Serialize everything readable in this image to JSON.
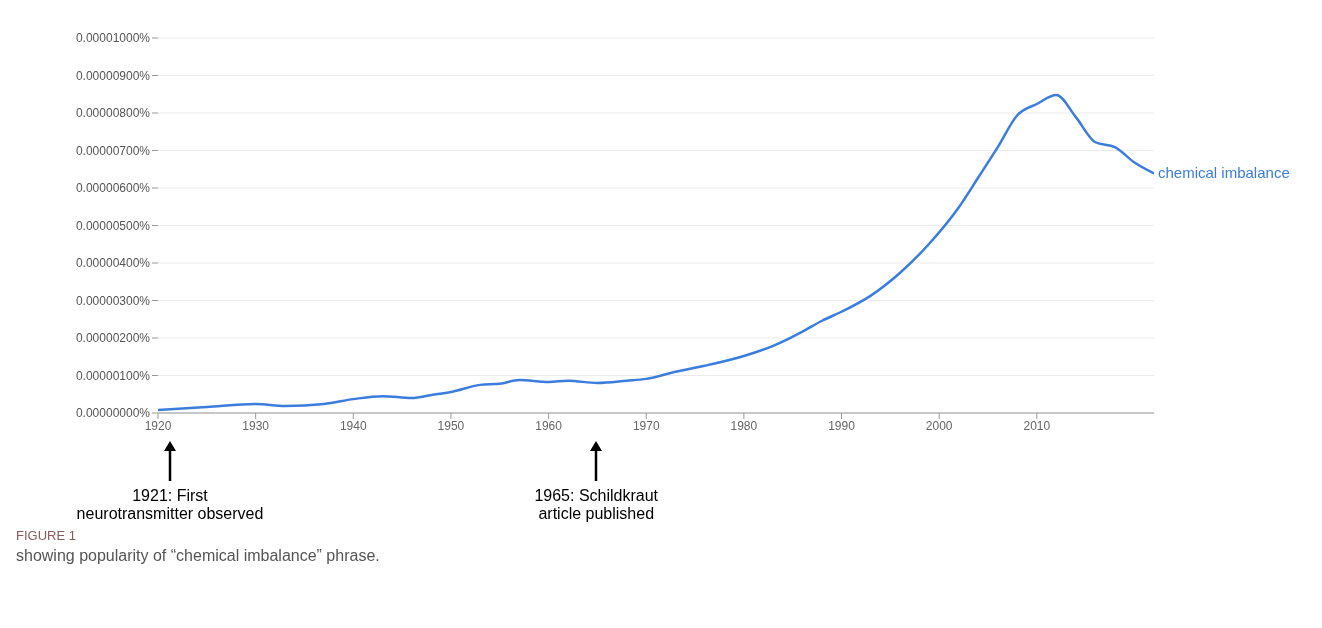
{
  "chart_data": {
    "type": "line",
    "x": [
      1920,
      1925,
      1930,
      1933,
      1937,
      1940,
      1943,
      1946,
      1948,
      1950,
      1953,
      1955,
      1957,
      1960,
      1962,
      1965,
      1968,
      1970,
      1973,
      1976,
      1980,
      1983,
      1986,
      1988,
      1990,
      1993,
      1996,
      1999,
      2002,
      2004,
      2006,
      2008,
      2010,
      2012,
      2014,
      2016,
      2018,
      2020,
      2022
    ],
    "series": [
      {
        "name": "chemical imbalance",
        "color": "#3b7ddd",
        "values": [
          8e-08,
          1.6e-07,
          2.4e-07,
          1.9e-07,
          2.4e-07,
          3.7e-07,
          4.5e-07,
          4e-07,
          4.8e-07,
          5.6e-07,
          7.5e-07,
          7.8e-07,
          8.8e-07,
          8.3e-07,
          8.6e-07,
          8e-07,
          8.6e-07,
          9.1e-07,
          1.1e-06,
          1.26e-06,
          1.52e-06,
          1.79e-06,
          2.17e-06,
          2.46e-06,
          2.7e-06,
          3.13e-06,
          3.74e-06,
          4.52e-06,
          5.48e-06,
          6.28e-06,
          7.09e-06,
          7.94e-06,
          8.24e-06,
          8.48e-06,
          7.89e-06,
          7.22e-06,
          7.09e-06,
          6.68e-06,
          6.39e-06
        ]
      }
    ],
    "xlim": [
      1920,
      2022
    ],
    "xticks": [
      1920,
      1930,
      1940,
      1950,
      1960,
      1970,
      1980,
      1990,
      2000,
      2010
    ],
    "ylim": [
      0,
      1e-05
    ],
    "yticks": [
      {
        "value": 0,
        "label": "0.00000000%"
      },
      {
        "value": 1e-06,
        "label": "0.00000100%"
      },
      {
        "value": 2e-06,
        "label": "0.00000200%"
      },
      {
        "value": 3e-06,
        "label": "0.00000300%"
      },
      {
        "value": 4e-06,
        "label": "0.00000400%"
      },
      {
        "value": 5e-06,
        "label": "0.00000500%"
      },
      {
        "value": 6e-06,
        "label": "0.00000600%"
      },
      {
        "value": 7e-06,
        "label": "0.00000700%"
      },
      {
        "value": 8e-06,
        "label": "0.00000800%"
      },
      {
        "value": 9e-06,
        "label": "0.00000900%"
      },
      {
        "value": 1e-05,
        "label": "0.00001000%"
      }
    ],
    "grid": "y",
    "marker": "none",
    "line_style": "solid",
    "legend": false,
    "annotations": [
      "1921: First\nneurotransmitter observed",
      "1965: Schildkraut\narticle published",
      "FIGURE 1",
      "showing popularity of “chemical imbalance” phrase."
    ]
  }
}
